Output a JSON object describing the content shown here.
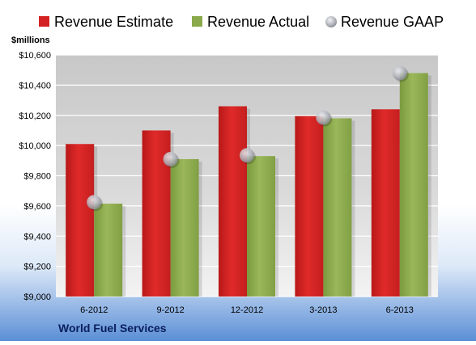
{
  "chart_data": {
    "type": "bar",
    "title": "",
    "company": "World Fuel Services",
    "ylabel": "$millions",
    "xlabel": "",
    "ylim": [
      9000,
      10600
    ],
    "yticks": [
      9000,
      9200,
      9400,
      9600,
      9800,
      10000,
      10200,
      10400,
      10600
    ],
    "ytick_labels": [
      "$9,000",
      "$9,200",
      "$9,400",
      "$9,600",
      "$9,800",
      "$10,000",
      "$10,200",
      "$10,400",
      "$10,600"
    ],
    "categories": [
      "6-2012",
      "9-2012",
      "12-2012",
      "3-2013",
      "6-2013"
    ],
    "series": [
      {
        "name": "Revenue Estimate",
        "kind": "bar",
        "color": "#d42222",
        "values": [
          10010,
          10100,
          10260,
          10195,
          10240
        ]
      },
      {
        "name": "Revenue Actual",
        "kind": "bar",
        "color": "#8aa94a",
        "values": [
          9615,
          9910,
          9930,
          10180,
          10480
        ]
      },
      {
        "name": "Revenue GAAP",
        "kind": "marker",
        "color": "#b8bcc4",
        "values": [
          9625,
          9910,
          9935,
          10185,
          10480
        ]
      }
    ],
    "grid": true,
    "legend_position": "top"
  }
}
